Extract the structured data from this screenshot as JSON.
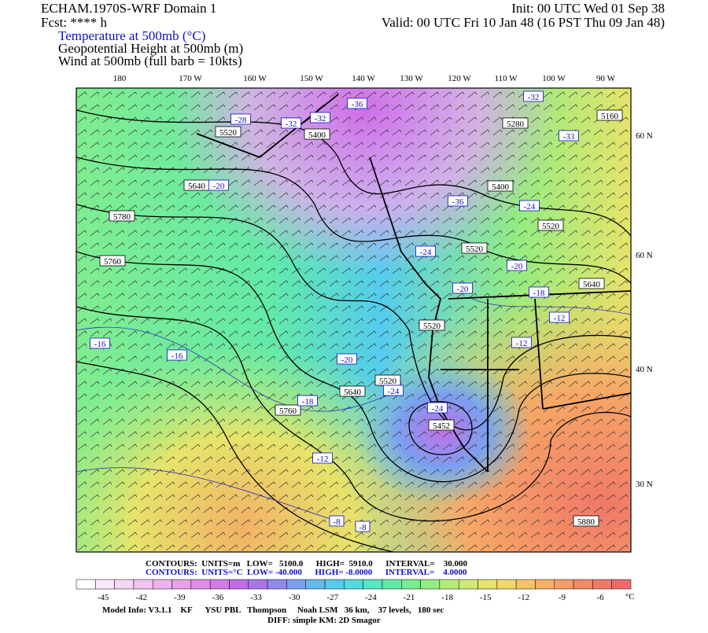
{
  "header": {
    "left": [
      "ECHAM.1970S-WRF Domain 1",
      "Fcst: **** h"
    ],
    "right": [
      "Init: 00 UTC Wed 01 Sep 38",
      "Valid: 00 UTC Fri 10 Jan 48 (16 PST Thu 09 Jan 48)"
    ],
    "fields": [
      "Temperature at 500mb (°C)",
      "Geopotential Height at 500mb (m)",
      "Wind at 500mb (full barb = 10kts)"
    ]
  },
  "map": {
    "lon_labels": [
      "180",
      "170 W",
      "160 W",
      "150 W",
      "140 W",
      "130 W",
      "120 W",
      "110 W",
      "100 W",
      "90 W"
    ],
    "lat_labels": [
      "60 N",
      "60 N",
      "40 N",
      "30 N"
    ],
    "height_labels": [
      "5520",
      "5400",
      "5640",
      "5780",
      "5760",
      "5280",
      "5160",
      "5400",
      "5520",
      "5520",
      "5520",
      "5520",
      "5640",
      "5760",
      "5452",
      "5880",
      "5640"
    ],
    "temp_labels": [
      "-28",
      "-32",
      "-32",
      "-36",
      "-32",
      "-33",
      "-36",
      "-24",
      "-24",
      "-20",
      "-20",
      "-18",
      "-12",
      "-12",
      "-16",
      "-16",
      "-20",
      "-24",
      "-18",
      "-24",
      "-12",
      "-8",
      "-8",
      "-20"
    ]
  },
  "contours": [
    "CONTOURS:  UNITS=m   LOW=   5100.0      HIGH=  5910.0      INTERVAL=    30.000",
    "CONTOURS:  UNITS=°C  LOW= -40.000      HIGH= -8.0000      INTERVAL=    4.0000"
  ],
  "colorbar": {
    "labels": [
      "-45",
      "-42",
      "-39",
      "-36",
      "-33",
      "-30",
      "-27",
      "-24",
      "-21",
      "-18",
      "-15",
      "-12",
      "-9",
      "-6"
    ],
    "unit": "°C",
    "colors": [
      "#ffffff",
      "#fbe8fb",
      "#f6d6f6",
      "#f2c4f2",
      "#edb2ee",
      "#e9a0ea",
      "#e08ee8",
      "#d37ce8",
      "#c06ee8",
      "#a975ec",
      "#9189ee",
      "#7aa0f0",
      "#65b8f0",
      "#55ccee",
      "#50dcdc",
      "#55e6c4",
      "#62eaa8",
      "#78ec90",
      "#95ec80",
      "#b2ec78",
      "#ceea70",
      "#e6e46a",
      "#f2d868",
      "#f6c466",
      "#f6b066",
      "#f69c66",
      "#f28a66",
      "#f07868",
      "#ee6a6a"
    ]
  },
  "footer": [
    "Model Info: V3.1.1    KF      YSU PBL   Thompson     Noah LSM   36 km,    37 levels,   180 sec",
    "DIFF: simple KM: 2D Smagor"
  ]
}
